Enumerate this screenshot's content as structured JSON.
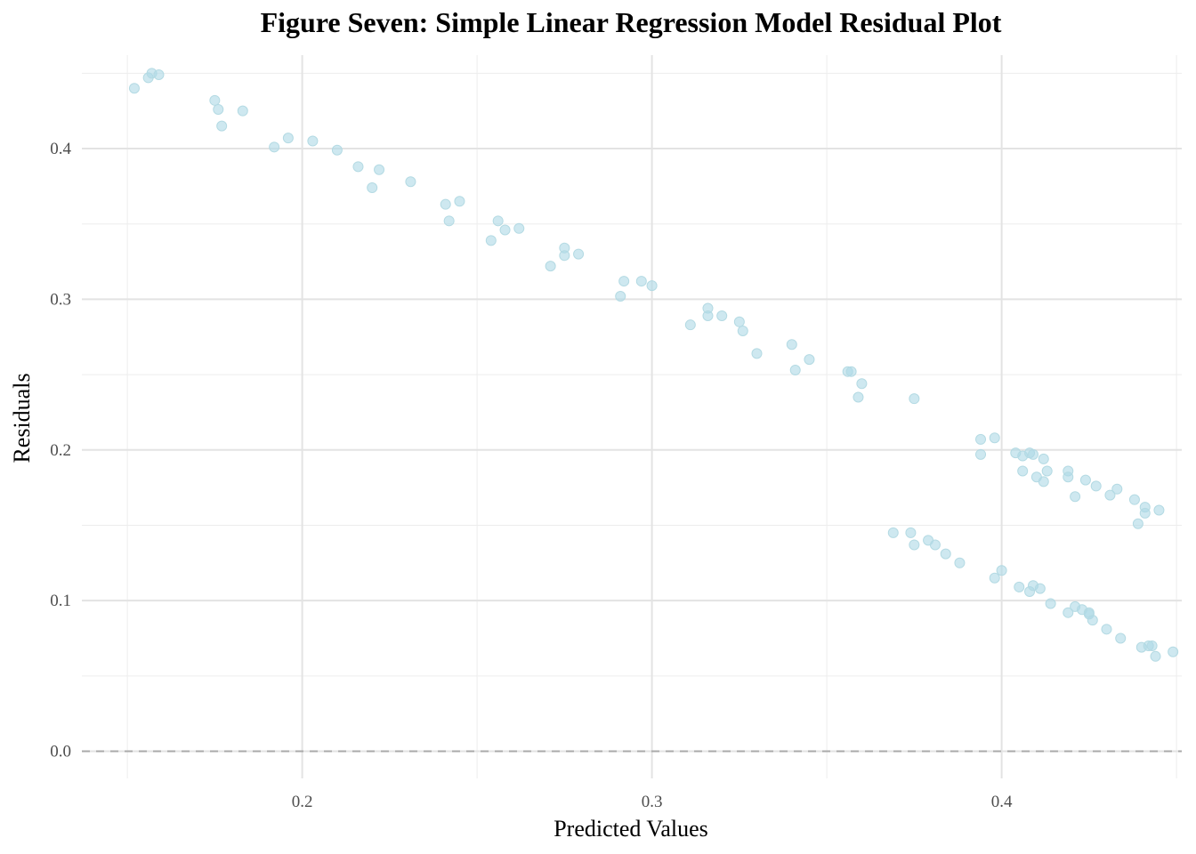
{
  "chart_data": {
    "type": "scatter",
    "title": "Figure Seven: Simple Linear Regression Model Residual Plot",
    "xlabel": "Predicted Values",
    "ylabel": "Residuals",
    "xlim": [
      0.137,
      0.4515
    ],
    "ylim": [
      -0.018,
      0.462
    ],
    "x_ticks": [
      0.2,
      0.3,
      0.4
    ],
    "x_tick_labels": [
      "0.2",
      "0.3",
      "0.4"
    ],
    "y_ticks": [
      0.0,
      0.1,
      0.2,
      0.3,
      0.4
    ],
    "y_tick_labels": [
      "0.0",
      "0.1",
      "0.2",
      "0.3",
      "0.4"
    ],
    "grid": true,
    "reference_line": {
      "y": 0,
      "style": "dashed",
      "color": "#aaaaaa"
    },
    "point_color": "#add8e6",
    "point_opacity": 0.6,
    "points": [
      {
        "x": 0.152,
        "y": 0.44
      },
      {
        "x": 0.156,
        "y": 0.447
      },
      {
        "x": 0.157,
        "y": 0.45
      },
      {
        "x": 0.159,
        "y": 0.449
      },
      {
        "x": 0.175,
        "y": 0.432
      },
      {
        "x": 0.176,
        "y": 0.426
      },
      {
        "x": 0.177,
        "y": 0.415
      },
      {
        "x": 0.183,
        "y": 0.425
      },
      {
        "x": 0.192,
        "y": 0.401
      },
      {
        "x": 0.196,
        "y": 0.407
      },
      {
        "x": 0.203,
        "y": 0.405
      },
      {
        "x": 0.21,
        "y": 0.399
      },
      {
        "x": 0.216,
        "y": 0.388
      },
      {
        "x": 0.22,
        "y": 0.374
      },
      {
        "x": 0.222,
        "y": 0.386
      },
      {
        "x": 0.231,
        "y": 0.378
      },
      {
        "x": 0.241,
        "y": 0.363
      },
      {
        "x": 0.242,
        "y": 0.352
      },
      {
        "x": 0.245,
        "y": 0.365
      },
      {
        "x": 0.254,
        "y": 0.339
      },
      {
        "x": 0.256,
        "y": 0.352
      },
      {
        "x": 0.258,
        "y": 0.346
      },
      {
        "x": 0.262,
        "y": 0.347
      },
      {
        "x": 0.271,
        "y": 0.322
      },
      {
        "x": 0.275,
        "y": 0.334
      },
      {
        "x": 0.275,
        "y": 0.329
      },
      {
        "x": 0.279,
        "y": 0.33
      },
      {
        "x": 0.291,
        "y": 0.302
      },
      {
        "x": 0.292,
        "y": 0.312
      },
      {
        "x": 0.297,
        "y": 0.312
      },
      {
        "x": 0.3,
        "y": 0.309
      },
      {
        "x": 0.311,
        "y": 0.283
      },
      {
        "x": 0.316,
        "y": 0.294
      },
      {
        "x": 0.316,
        "y": 0.289
      },
      {
        "x": 0.32,
        "y": 0.289
      },
      {
        "x": 0.325,
        "y": 0.285
      },
      {
        "x": 0.326,
        "y": 0.279
      },
      {
        "x": 0.33,
        "y": 0.264
      },
      {
        "x": 0.34,
        "y": 0.27
      },
      {
        "x": 0.341,
        "y": 0.253
      },
      {
        "x": 0.345,
        "y": 0.26
      },
      {
        "x": 0.356,
        "y": 0.252
      },
      {
        "x": 0.357,
        "y": 0.252
      },
      {
        "x": 0.359,
        "y": 0.235
      },
      {
        "x": 0.36,
        "y": 0.244
      },
      {
        "x": 0.369,
        "y": 0.145
      },
      {
        "x": 0.374,
        "y": 0.145
      },
      {
        "x": 0.375,
        "y": 0.137
      },
      {
        "x": 0.375,
        "y": 0.234
      },
      {
        "x": 0.379,
        "y": 0.14
      },
      {
        "x": 0.381,
        "y": 0.137
      },
      {
        "x": 0.384,
        "y": 0.131
      },
      {
        "x": 0.388,
        "y": 0.125
      },
      {
        "x": 0.394,
        "y": 0.197
      },
      {
        "x": 0.394,
        "y": 0.207
      },
      {
        "x": 0.398,
        "y": 0.208
      },
      {
        "x": 0.398,
        "y": 0.115
      },
      {
        "x": 0.4,
        "y": 0.12
      },
      {
        "x": 0.404,
        "y": 0.198
      },
      {
        "x": 0.405,
        "y": 0.109
      },
      {
        "x": 0.406,
        "y": 0.196
      },
      {
        "x": 0.406,
        "y": 0.186
      },
      {
        "x": 0.408,
        "y": 0.198
      },
      {
        "x": 0.408,
        "y": 0.106
      },
      {
        "x": 0.409,
        "y": 0.197
      },
      {
        "x": 0.409,
        "y": 0.11
      },
      {
        "x": 0.41,
        "y": 0.182
      },
      {
        "x": 0.411,
        "y": 0.108
      },
      {
        "x": 0.412,
        "y": 0.194
      },
      {
        "x": 0.412,
        "y": 0.179
      },
      {
        "x": 0.413,
        "y": 0.186
      },
      {
        "x": 0.414,
        "y": 0.098
      },
      {
        "x": 0.419,
        "y": 0.186
      },
      {
        "x": 0.419,
        "y": 0.182
      },
      {
        "x": 0.419,
        "y": 0.092
      },
      {
        "x": 0.421,
        "y": 0.169
      },
      {
        "x": 0.421,
        "y": 0.096
      },
      {
        "x": 0.423,
        "y": 0.094
      },
      {
        "x": 0.424,
        "y": 0.18
      },
      {
        "x": 0.425,
        "y": 0.092
      },
      {
        "x": 0.425,
        "y": 0.091
      },
      {
        "x": 0.426,
        "y": 0.087
      },
      {
        "x": 0.427,
        "y": 0.176
      },
      {
        "x": 0.43,
        "y": 0.081
      },
      {
        "x": 0.431,
        "y": 0.17
      },
      {
        "x": 0.433,
        "y": 0.174
      },
      {
        "x": 0.434,
        "y": 0.075
      },
      {
        "x": 0.438,
        "y": 0.167
      },
      {
        "x": 0.439,
        "y": 0.151
      },
      {
        "x": 0.44,
        "y": 0.069
      },
      {
        "x": 0.441,
        "y": 0.162
      },
      {
        "x": 0.441,
        "y": 0.158
      },
      {
        "x": 0.442,
        "y": 0.07
      },
      {
        "x": 0.443,
        "y": 0.07
      },
      {
        "x": 0.444,
        "y": 0.063
      },
      {
        "x": 0.445,
        "y": 0.16
      },
      {
        "x": 0.449,
        "y": 0.066
      }
    ]
  }
}
